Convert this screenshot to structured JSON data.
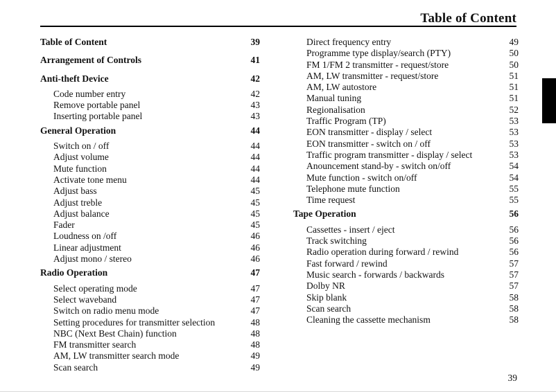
{
  "header": {
    "title": "Table of Content"
  },
  "footer": {
    "page_number": "39"
  },
  "columns": [
    {
      "sections": [
        {
          "heading": {
            "label": "Table of Content",
            "page": "39"
          },
          "items": []
        },
        {
          "heading": {
            "label": "Arrangement of Controls",
            "page": "41"
          },
          "items": []
        },
        {
          "heading": {
            "label": "Anti-theft Device",
            "page": "42"
          },
          "items": [
            {
              "label": "Code number entry",
              "page": "42"
            },
            {
              "label": "Remove portable panel",
              "page": "43"
            },
            {
              "label": "Inserting portable panel",
              "page": "43"
            }
          ]
        },
        {
          "heading": {
            "label": "General Operation",
            "page": "44"
          },
          "items": [
            {
              "label": "Switch on / off",
              "page": "44"
            },
            {
              "label": "Adjust volume",
              "page": "44"
            },
            {
              "label": "Mute function",
              "page": "44"
            },
            {
              "label": "Activate tone menu",
              "page": "44"
            },
            {
              "label": "Adjust bass",
              "page": "45"
            },
            {
              "label": "Adjust treble",
              "page": "45"
            },
            {
              "label": "Adjust balance",
              "page": "45"
            },
            {
              "label": "Fader",
              "page": "45"
            },
            {
              "label": "Loudness on /off",
              "page": "46"
            },
            {
              "label": "Linear adjustment",
              "page": "46"
            },
            {
              "label": "Adjust mono / stereo",
              "page": "46"
            }
          ]
        },
        {
          "heading": {
            "label": "Radio Operation",
            "page": "47"
          },
          "items": [
            {
              "label": "Select operating mode",
              "page": "47"
            },
            {
              "label": "Select waveband",
              "page": "47"
            },
            {
              "label": "Switch on radio menu mode",
              "page": "47"
            },
            {
              "label": "Setting procedures for transmitter selection",
              "page": "48"
            },
            {
              "label": "NBC (Next Best Chain) function",
              "page": "48"
            },
            {
              "label": "FM transmitter search",
              "page": "48"
            },
            {
              "label": "AM, LW transmitter search mode",
              "page": "49"
            },
            {
              "label": "Scan search",
              "page": "49"
            }
          ]
        }
      ]
    },
    {
      "sections": [
        {
          "heading": null,
          "items": [
            {
              "label": "Direct frequency entry",
              "page": "49"
            },
            {
              "label": "Programme type display/search (PTY)",
              "page": "50"
            },
            {
              "label": "FM 1/FM 2 transmitter - request/store",
              "page": "50"
            },
            {
              "label": "AM, LW transmitter - request/store",
              "page": "51"
            },
            {
              "label": "AM, LW autostore",
              "page": "51"
            },
            {
              "label": "Manual tuning",
              "page": "51"
            },
            {
              "label": "Regionalisation",
              "page": "52"
            },
            {
              "label": "Traffic Program (TP)",
              "page": "53"
            },
            {
              "label": "EON transmitter - display / select",
              "page": "53"
            },
            {
              "label": "EON transmitter - switch on / off",
              "page": "53"
            },
            {
              "label": "Traffic program transmitter - display / select",
              "page": "53"
            },
            {
              "label": "Anouncement stand-by - switch on/off",
              "page": "54"
            },
            {
              "label": "Mute function - switch on/off",
              "page": "54"
            },
            {
              "label": "Telephone mute function",
              "page": "55"
            },
            {
              "label": "Time request",
              "page": "55"
            }
          ]
        },
        {
          "heading": {
            "label": "Tape Operation",
            "page": "56"
          },
          "items": [
            {
              "label": "Cassettes - insert / eject",
              "page": "56"
            },
            {
              "label": "Track switching",
              "page": "56"
            },
            {
              "label": "Radio operation during forward / rewind",
              "page": "56"
            },
            {
              "label": "Fast forward / rewind",
              "page": "57"
            },
            {
              "label": "Music search - forwards / backwards",
              "page": "57"
            },
            {
              "label": "Dolby NR",
              "page": "57"
            },
            {
              "label": "Skip blank",
              "page": "58"
            },
            {
              "label": "Scan search",
              "page": "58"
            },
            {
              "label": "Cleaning the cassette mechanism",
              "page": "58"
            }
          ]
        }
      ]
    }
  ]
}
